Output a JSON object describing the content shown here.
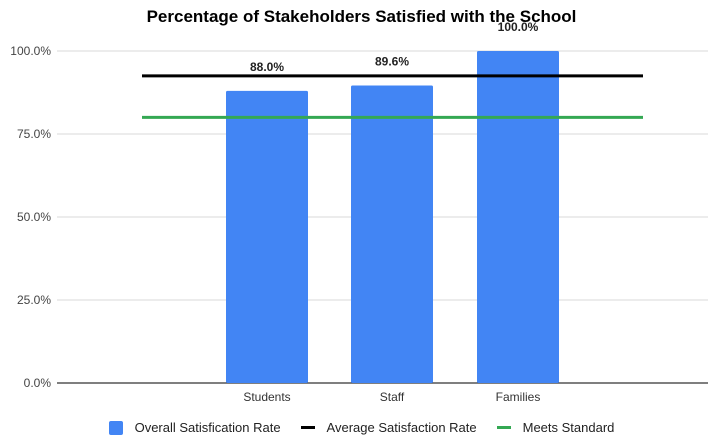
{
  "chart_data": {
    "type": "bar",
    "title": "Percentage of Stakeholders Satisfied with the School",
    "xlabel": "",
    "ylabel": "",
    "categories": [
      "Students",
      "Staff",
      "Families"
    ],
    "series": [
      {
        "name": "Overall Satisfication Rate",
        "values": [
          88.0,
          89.6,
          100.0
        ],
        "data_labels": [
          "88.0%",
          "89.6%",
          "100.0%"
        ],
        "color": "#4285f4"
      }
    ],
    "reference_lines": [
      {
        "name": "Average Satisfaction Rate",
        "value": 92.5,
        "color": "#000000"
      },
      {
        "name": "Meets Standard",
        "value": 80.0,
        "color": "#34a853"
      }
    ],
    "ylim": [
      0,
      100
    ],
    "yticks": [
      0,
      25,
      50,
      75,
      100
    ],
    "ytick_labels": [
      "0.0%",
      "25.0%",
      "50.0%",
      "75.0%",
      "100.0%"
    ],
    "grid": true,
    "legend_position": "bottom"
  }
}
